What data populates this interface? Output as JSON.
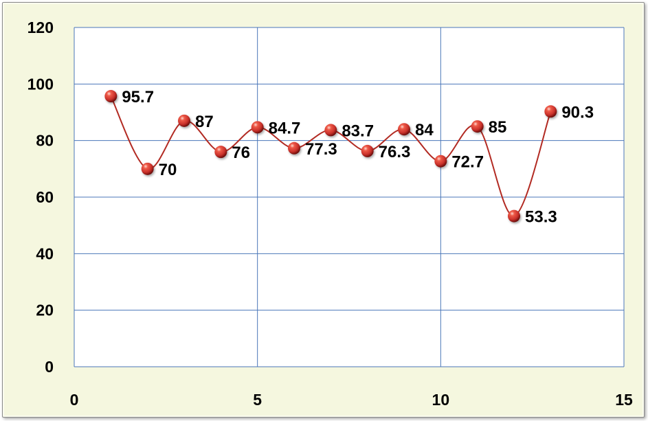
{
  "chart_data": {
    "type": "scatter",
    "mode": "lines+markers",
    "line_style": "smooth",
    "title": "",
    "xlabel": "",
    "ylabel": "",
    "xlim": [
      0,
      15
    ],
    "ylim": [
      0,
      120
    ],
    "x_ticks": [
      0,
      5,
      10,
      15
    ],
    "y_ticks": [
      0,
      20,
      40,
      60,
      80,
      100,
      120
    ],
    "x_tick_labels": [
      "0",
      "5",
      "10",
      "15"
    ],
    "y_tick_labels": [
      "0",
      "20",
      "40",
      "60",
      "80",
      "100",
      "120"
    ],
    "grid": true,
    "legend": "none",
    "series": [
      {
        "x": [
          1,
          2,
          3,
          4,
          5,
          6,
          7,
          8,
          9,
          10,
          11,
          12,
          13
        ],
        "y": [
          95.7,
          70,
          87,
          76,
          84.7,
          77.3,
          83.7,
          76.3,
          84,
          72.7,
          85,
          53.3,
          90.3
        ],
        "labels": [
          "95.7",
          "70",
          "87",
          "76",
          "84.7",
          "77.3",
          "83.7",
          "76.3",
          "84",
          "72.7",
          "85",
          "53.3",
          "90.3"
        ],
        "line_color": "#b22a22",
        "marker_color": "#c8302a"
      }
    ],
    "colors": {
      "background": "#f5f7df",
      "plot_area": "#ffffff",
      "grid": "#4a76b8"
    }
  }
}
